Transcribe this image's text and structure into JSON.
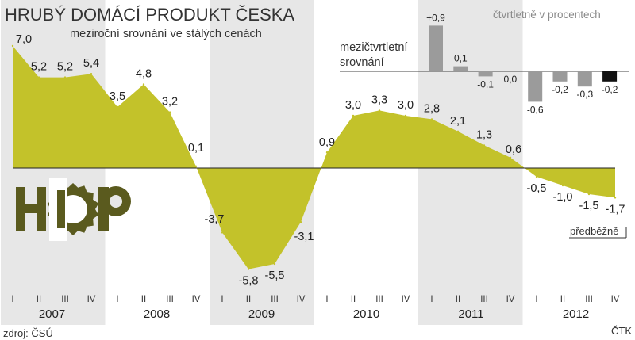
{
  "title": "HRUBÝ DOMÁCÍ PRODUKT ČESKA",
  "subtitle": "meziroční srovnání ve stálých cenách",
  "unit_note": "čtvrtletně v procentech",
  "inset_title_line1": "mezičtvrtletní",
  "inset_title_line2": "srovnání",
  "preliminary_label": "předběžně",
  "source": "zdroj: ČSÚ",
  "credit": "ČTK",
  "logo_letters": "HDP",
  "colors": {
    "area": "#c3c22a",
    "shade": "#e7e7e7",
    "bar_gray": "#9b9b9b",
    "bar_last": "#111111",
    "logo": "#5a5a1e"
  },
  "chart_data": [
    {
      "type": "area",
      "title": "HRUBÝ DOMÁCÍ PRODUKT ČESKA",
      "subtitle": "meziroční srovnání ve stálých cenách",
      "quarters": [
        "I",
        "II",
        "III",
        "IV",
        "I",
        "II",
        "III",
        "IV",
        "I",
        "II",
        "III",
        "IV",
        "I",
        "II",
        "III",
        "IV",
        "I",
        "II",
        "III",
        "IV",
        "I",
        "II",
        "III",
        "IV"
      ],
      "years": [
        "2007",
        "2008",
        "2009",
        "2010",
        "2011",
        "2012"
      ],
      "values": [
        7.0,
        5.2,
        5.2,
        5.4,
        3.5,
        4.8,
        3.2,
        0.1,
        -3.7,
        -5.8,
        -5.5,
        -3.1,
        0.9,
        3.0,
        3.3,
        3.0,
        2.8,
        2.1,
        1.3,
        0.6,
        -0.5,
        -1.0,
        -1.5,
        -1.7
      ],
      "value_labels": [
        "7,0",
        "5,2",
        "5,2",
        "5,4",
        "3,5",
        "4,8",
        "3,2",
        "0,1",
        "-3,7",
        "-5,8",
        "-5,5",
        "-3,1",
        "0,9",
        "3,0",
        "3,3",
        "3,0",
        "2,8",
        "2,1",
        "1,3",
        "0,6",
        "-0,5",
        "-1,0",
        "-1,5",
        "-1,7"
      ],
      "ylim": [
        -7.5,
        8.0
      ],
      "shaded_years": [
        "2007",
        "2009",
        "2011"
      ],
      "preliminary": "předběžně"
    },
    {
      "type": "bar",
      "title": "mezičtvrtletní srovnání",
      "categories": [
        "2011 I",
        "2011 II",
        "2011 III",
        "2011 IV",
        "2012 I",
        "2012 II",
        "2012 III",
        "2012 IV"
      ],
      "values": [
        0.9,
        0.1,
        -0.1,
        0.0,
        -0.6,
        -0.2,
        -0.3,
        -0.2
      ],
      "value_labels": [
        "+0,9",
        "0,1",
        "-0,1",
        "0,0",
        "-0,6",
        "-0,2",
        "-0,3",
        "-0,2"
      ],
      "highlight_last": true
    }
  ]
}
